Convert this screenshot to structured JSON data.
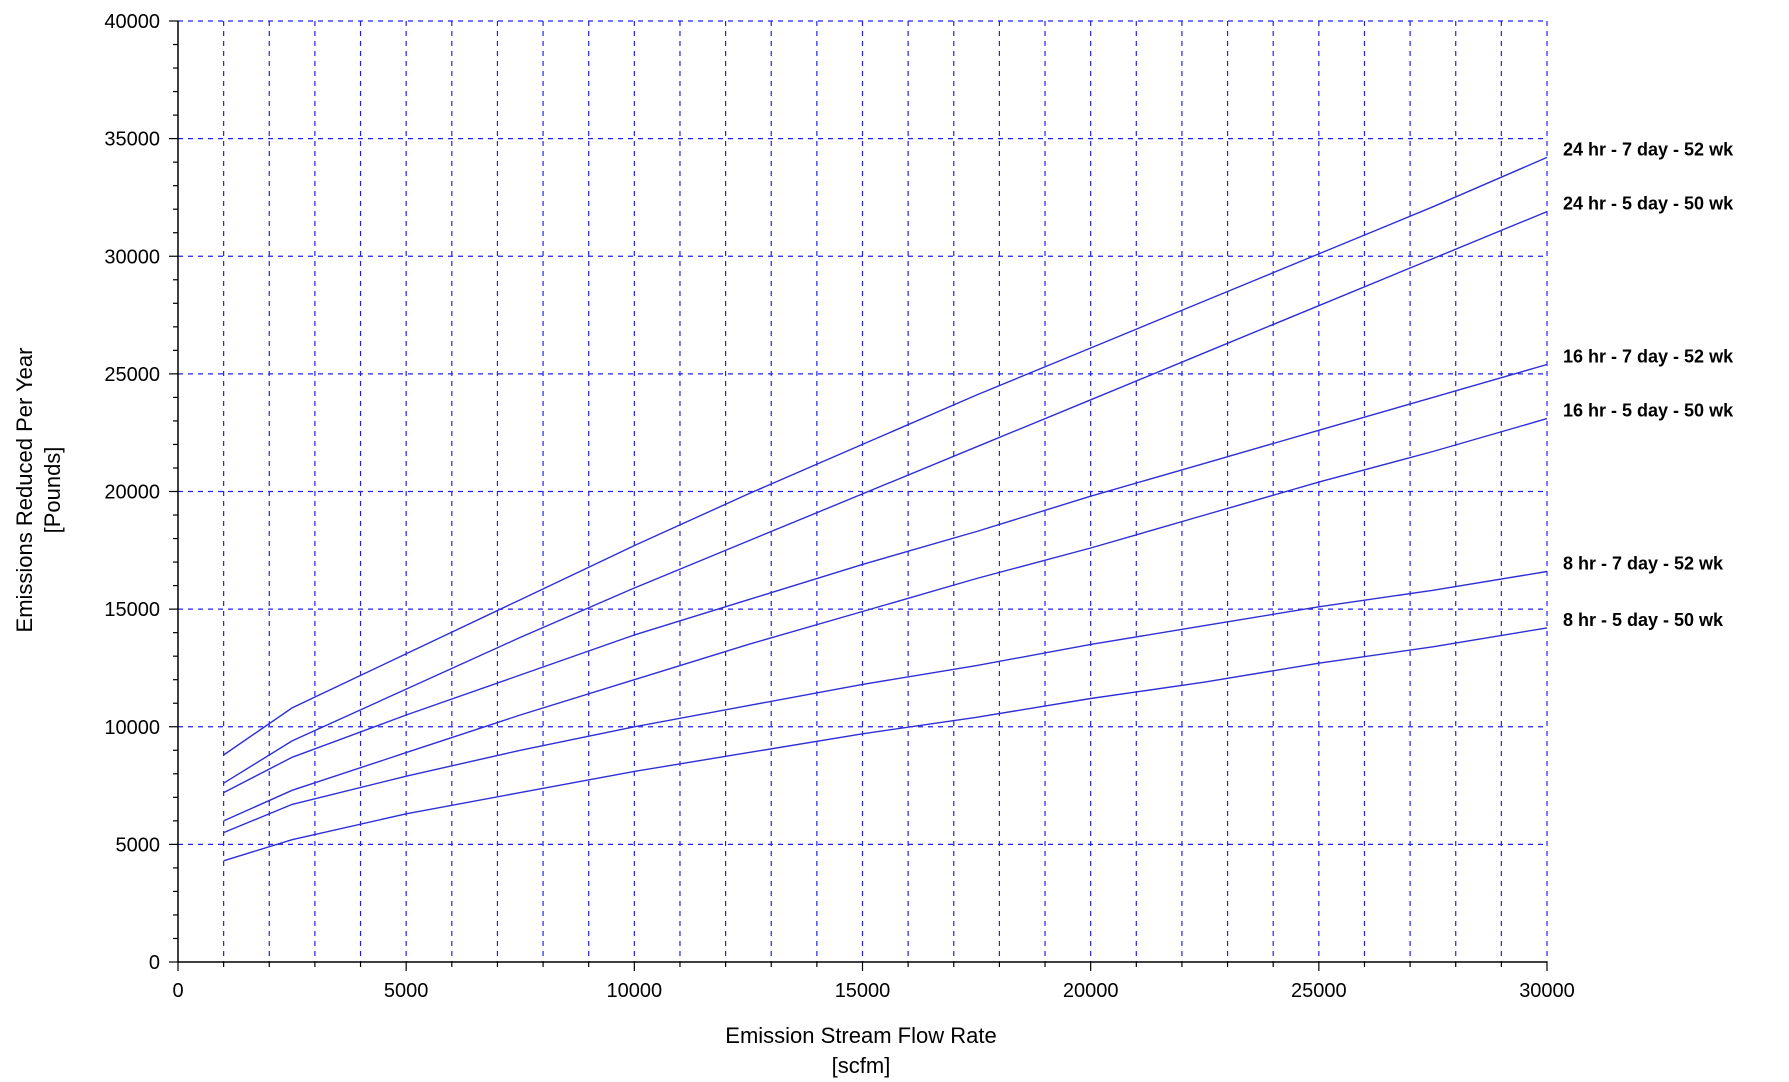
{
  "chart_data": {
    "type": "line",
    "title": "",
    "xlabel": [
      "Emission Stream Flow Rate",
      "[scfm]"
    ],
    "ylabel": [
      "Emissions Reduced Per Year",
      "[Pounds]"
    ],
    "xlim": [
      0,
      30000
    ],
    "ylim": [
      0,
      40000
    ],
    "x_ticks": [
      0,
      5000,
      10000,
      15000,
      20000,
      25000,
      30000
    ],
    "y_ticks": [
      0,
      5000,
      10000,
      15000,
      20000,
      25000,
      30000,
      35000,
      40000
    ],
    "x_tick_labels": [
      "0",
      "5000",
      "10000",
      "15000",
      "20000",
      "25000",
      "30000"
    ],
    "y_tick_labels": [
      "0",
      "5000",
      "10000",
      "15000",
      "20000",
      "25000",
      "30000",
      "35000",
      "40000"
    ],
    "grid": true,
    "grid_x_step": 1000,
    "grid_y_step": 5000,
    "grid_style": "dashed",
    "grid_x_range": [
      1000,
      30000
    ],
    "legend": "labels at right end of each line",
    "line_color": "#2f2fd6",
    "grid_color": "#2222ee",
    "x": [
      1000,
      2500,
      5000,
      7500,
      10000,
      12500,
      15000,
      17500,
      20000,
      22500,
      25000,
      27500,
      30000
    ],
    "series": [
      {
        "name": "24 hr - 7 day - 52 wk",
        "values": [
          8800,
          10800,
          13100,
          15400,
          17700,
          19900,
          22000,
          24100,
          26100,
          28100,
          30100,
          32100,
          34200
        ]
      },
      {
        "name": "24 hr - 5 day - 50 wk",
        "values": [
          7600,
          9400,
          11600,
          13800,
          15900,
          17900,
          19900,
          21900,
          23900,
          25900,
          27900,
          29900,
          31900
        ]
      },
      {
        "name": "16 hr - 7 day - 52 wk",
        "values": [
          7200,
          8700,
          10500,
          12200,
          13900,
          15400,
          16900,
          18300,
          19800,
          21200,
          22600,
          24000,
          25400
        ]
      },
      {
        "name": "16 hr - 5 day - 50 wk",
        "values": [
          6000,
          7300,
          8900,
          10500,
          12000,
          13500,
          14900,
          16300,
          17600,
          19000,
          20400,
          21700,
          23100
        ]
      },
      {
        "name": "8 hr - 7 day - 52 wk",
        "values": [
          5500,
          6700,
          7900,
          9000,
          10000,
          10900,
          11800,
          12600,
          13500,
          14300,
          15100,
          15800,
          16600
        ]
      },
      {
        "name": "8 hr - 5 day - 50 wk",
        "values": [
          4300,
          5200,
          6300,
          7200,
          8100,
          8900,
          9700,
          10400,
          11200,
          11900,
          12700,
          13400,
          14200
        ]
      }
    ]
  }
}
